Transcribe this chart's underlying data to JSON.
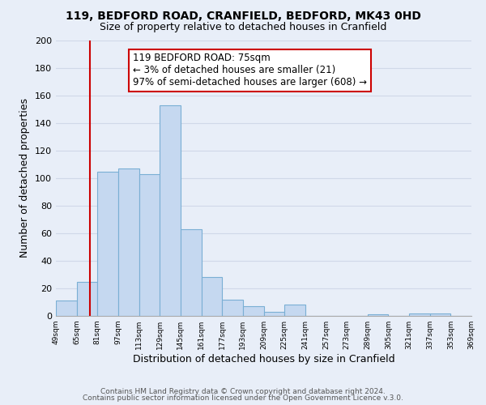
{
  "title1": "119, BEDFORD ROAD, CRANFIELD, BEDFORD, MK43 0HD",
  "title2": "Size of property relative to detached houses in Cranfield",
  "xlabel": "Distribution of detached houses by size in Cranfield",
  "ylabel": "Number of detached properties",
  "bar_color": "#c5d8f0",
  "bar_edge_color": "#7aafd4",
  "grid_color": "#d0d8e8",
  "bins": [
    49,
    65,
    81,
    97,
    113,
    129,
    145,
    161,
    177,
    193,
    209,
    225,
    241,
    257,
    273,
    289,
    305,
    321,
    337,
    353,
    369
  ],
  "bin_labels": [
    "49sqm",
    "65sqm",
    "81sqm",
    "97sqm",
    "113sqm",
    "129sqm",
    "145sqm",
    "161sqm",
    "177sqm",
    "193sqm",
    "209sqm",
    "225sqm",
    "241sqm",
    "257sqm",
    "273sqm",
    "289sqm",
    "305sqm",
    "321sqm",
    "337sqm",
    "353sqm",
    "369sqm"
  ],
  "counts": [
    11,
    25,
    105,
    107,
    103,
    153,
    63,
    28,
    12,
    7,
    3,
    8,
    0,
    0,
    0,
    1,
    0,
    2,
    2,
    0
  ],
  "ylim": [
    0,
    200
  ],
  "yticks": [
    0,
    20,
    40,
    60,
    80,
    100,
    120,
    140,
    160,
    180,
    200
  ],
  "vline_x": 75,
  "vline_color": "#cc0000",
  "annotation_title": "119 BEDFORD ROAD: 75sqm",
  "annotation_line1": "← 3% of detached houses are smaller (21)",
  "annotation_line2": "97% of semi-detached houses are larger (608) →",
  "annotation_box_facecolor": "#ffffff",
  "annotation_box_edgecolor": "#cc0000",
  "footer1": "Contains HM Land Registry data © Crown copyright and database right 2024.",
  "footer2": "Contains public sector information licensed under the Open Government Licence v.3.0.",
  "bg_color": "#e8eef8",
  "plot_bg_color": "#e8eef8"
}
